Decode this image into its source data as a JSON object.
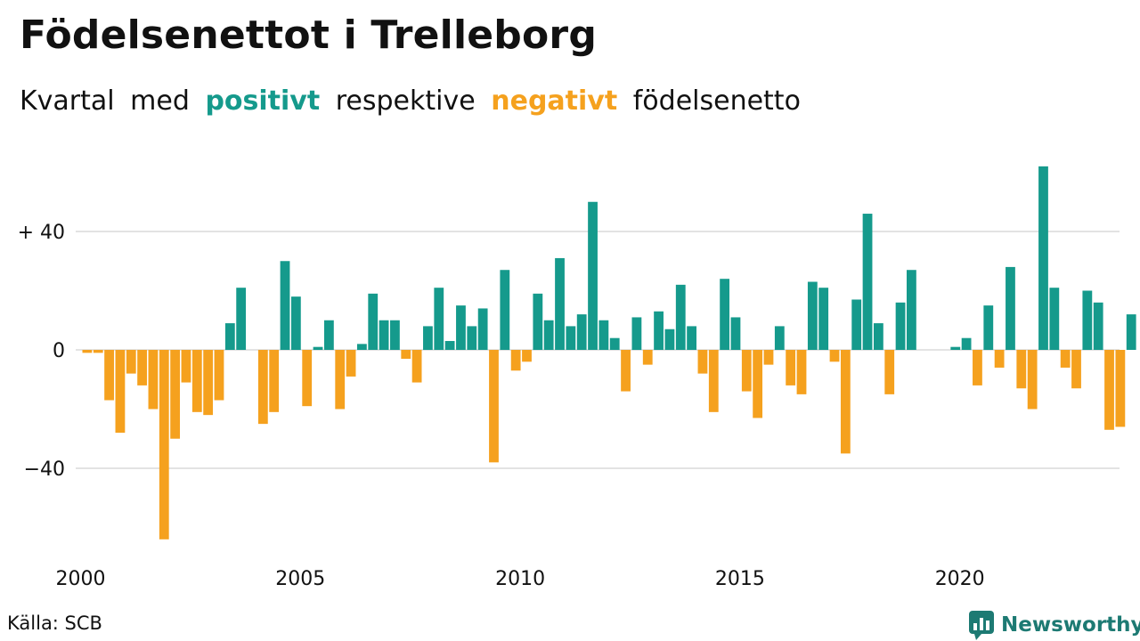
{
  "chart_data": {
    "type": "bar",
    "title": "Födelsenettot i Trelleborg",
    "subtitle": {
      "part1": "Kvartal med",
      "positive": "positivt",
      "part2": "respektive",
      "negative": "negativt",
      "part3": "födelsenetto"
    },
    "xlabel": "",
    "ylabel": "",
    "x_start_year": 2000,
    "x_ticks": [
      "2000",
      "2005",
      "2010",
      "2015",
      "2020"
    ],
    "y_ticks": [
      {
        "value": 40,
        "label": "+ 40"
      },
      {
        "value": 0,
        "label": "0"
      },
      {
        "value": -40,
        "label": "−40"
      }
    ],
    "ylim": [
      -73,
      66
    ],
    "grid": true,
    "colors": {
      "positive": "#159a8c",
      "negative": "#f5a11e"
    },
    "values": [
      -1,
      -1,
      -17,
      -28,
      -8,
      -12,
      -20,
      -64,
      -30,
      -11,
      -21,
      -22,
      -17,
      9,
      21,
      0,
      -25,
      -21,
      30,
      18,
      -19,
      1,
      10,
      -20,
      -9,
      2,
      19,
      10,
      10,
      -3,
      -11,
      8,
      21,
      3,
      15,
      8,
      14,
      -38,
      27,
      -7,
      -4,
      19,
      10,
      31,
      8,
      12,
      50,
      10,
      4,
      -14,
      11,
      -5,
      13,
      7,
      22,
      8,
      -8,
      -21,
      24,
      11,
      -14,
      -23,
      -5,
      8,
      -12,
      -15,
      23,
      21,
      -4,
      -35,
      17,
      46,
      9,
      -15,
      16,
      27,
      0,
      0,
      0,
      1,
      4,
      -12,
      15,
      -6,
      28,
      -13,
      -20,
      62,
      21,
      -6,
      -13,
      20,
      16,
      -27,
      -26,
      12
    ]
  },
  "footer": {
    "source": "Källa: SCB",
    "brand": "Newsworthy"
  }
}
